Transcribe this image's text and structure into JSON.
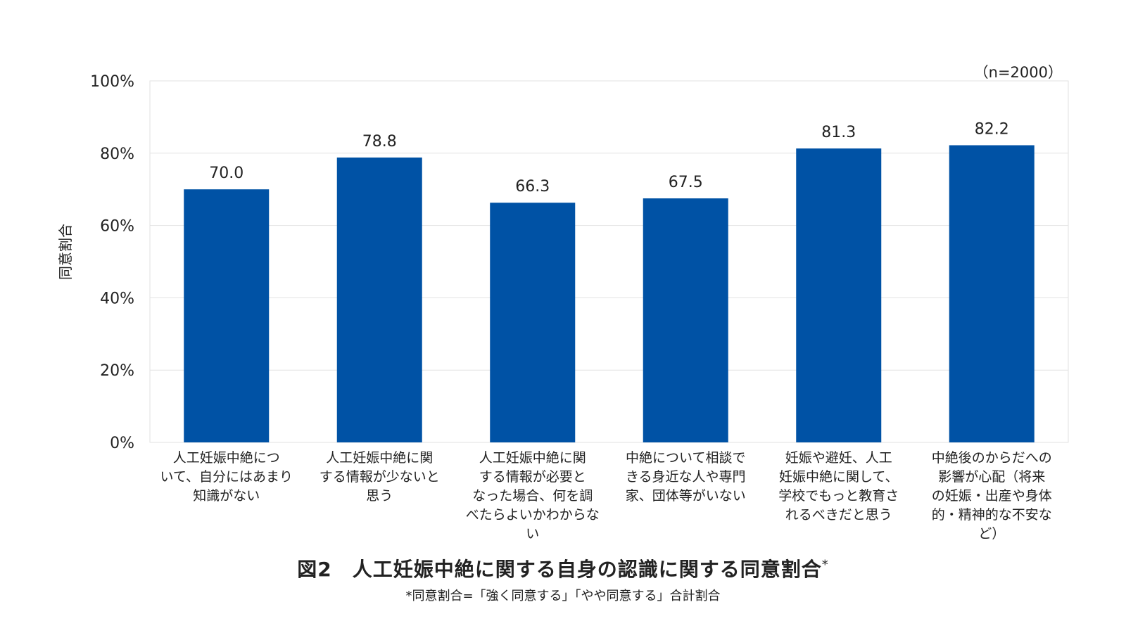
{
  "chart_data": {
    "type": "bar",
    "title": "図2　人工妊娠中絶に関する自身の認識に関する同意割合",
    "title_mark": "*",
    "footnote": "*同意割合=「強く同意する」「やや同意する」合計割合",
    "note": "（n=2000）",
    "ylabel": "同意割合",
    "xlabel": "",
    "ylim": [
      0,
      100
    ],
    "yticks": [
      "0%",
      "20%",
      "40%",
      "60%",
      "80%",
      "100%"
    ],
    "ytick_values": [
      0,
      20,
      40,
      60,
      80,
      100
    ],
    "grid": true,
    "bar_color": "#0052A5",
    "categories": [
      "人工妊娠中絶について、自分にはあまり知識がない",
      "人工妊娠中絶に関する情報が少ないと思う",
      "人工妊娠中絶に関する情報が必要となった場合、何を調べたらよいかわからない",
      "中絶について相談できる身近な人や専門家、団体等がいない",
      "妊娠や避妊、人工妊娠中絶に関して、学校でもっと教育されるべきだと思う",
      "中絶後のからだへの影響が心配（将来の妊娠・出産や身体的・精神的な不安など）"
    ],
    "category_lines": [
      [
        "人工妊娠中絶につ",
        "いて、自分にはあまり",
        "知識がない"
      ],
      [
        "人工妊娠中絶に関",
        "する情報が少ないと",
        "思う"
      ],
      [
        "人工妊娠中絶に関",
        "する情報が必要と",
        "なった場合、何を調",
        "べたらよいかわからな",
        "い"
      ],
      [
        "中絶について相談で",
        "きる身近な人や専門",
        "家、団体等がいない"
      ],
      [
        "妊娠や避妊、人工",
        "妊娠中絶に関して、",
        "学校でもっと教育さ",
        "れるべきだと思う"
      ],
      [
        "中絶後のからだへの",
        "影響が心配（将来",
        "の妊娠・出産や身体",
        "的・精神的な不安な",
        "ど）"
      ]
    ],
    "values": [
      70.0,
      78.8,
      66.3,
      67.5,
      81.3,
      82.2
    ],
    "value_labels": [
      "70.0",
      "78.8",
      "66.3",
      "67.5",
      "81.3",
      "82.2"
    ]
  }
}
